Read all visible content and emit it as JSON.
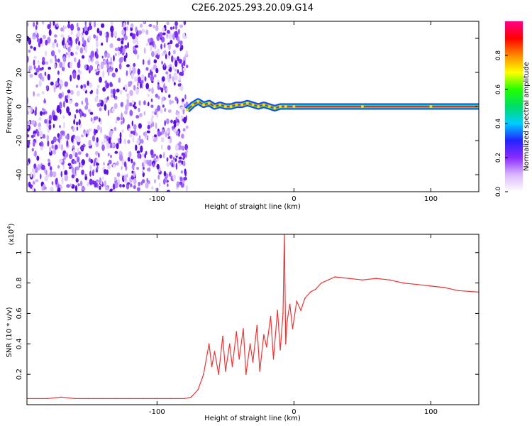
{
  "figure_title": "C2E6.2025.293.20.09.G14",
  "chart_data": [
    {
      "type": "heatmap",
      "title": "C2E6.2025.293.20.09.G14",
      "xlabel": "Height of straight line (km)",
      "ylabel": "Frequency (Hz)",
      "xlim": [
        -195,
        135
      ],
      "ylim": [
        -50,
        50
      ],
      "xticks": [
        -100,
        0,
        100
      ],
      "yticks": [
        -40,
        -20,
        0,
        20,
        40
      ],
      "xtick_labels": [
        "-100",
        "0",
        "100"
      ],
      "ytick_labels": [
        "-40",
        "-20",
        "0",
        "20",
        "40"
      ],
      "noise_region_x": [
        -195,
        -78
      ],
      "signal_track": [
        {
          "x": -78,
          "y": -2
        },
        {
          "x": -74,
          "y": 1
        },
        {
          "x": -70,
          "y": 3
        },
        {
          "x": -66,
          "y": 1
        },
        {
          "x": -62,
          "y": 2
        },
        {
          "x": -58,
          "y": 0
        },
        {
          "x": -54,
          "y": 1
        },
        {
          "x": -50,
          "y": 0
        },
        {
          "x": -46,
          "y": 0
        },
        {
          "x": -42,
          "y": 1
        },
        {
          "x": -38,
          "y": 1
        },
        {
          "x": -34,
          "y": 2
        },
        {
          "x": -30,
          "y": 1
        },
        {
          "x": -26,
          "y": 0
        },
        {
          "x": -22,
          "y": 1
        },
        {
          "x": -18,
          "y": 0
        },
        {
          "x": -14,
          "y": -1
        },
        {
          "x": -10,
          "y": 0
        },
        {
          "x": -6,
          "y": 0
        },
        {
          "x": 0,
          "y": 0
        },
        {
          "x": 50,
          "y": 0
        },
        {
          "x": 100,
          "y": 0
        },
        {
          "x": 135,
          "y": 0
        }
      ],
      "colorbar": {
        "label": "Normalized spectral amplitude",
        "ticks": [
          0.0,
          0.2,
          0.4,
          0.6,
          0.8
        ],
        "tick_labels": [
          "0.0",
          "0.2",
          "0.4",
          "0.6",
          "0.8"
        ],
        "range": [
          0,
          1
        ],
        "colors": [
          "#ffffff",
          "#d9b7ff",
          "#8b2cff",
          "#2222ff",
          "#00ccff",
          "#00dd66",
          "#22ff00",
          "#ffff00",
          "#ff8800",
          "#ff0000",
          "#ff0088"
        ]
      }
    },
    {
      "type": "line",
      "xlabel": "Height of straight line (km)",
      "ylabel": "SNR (10 * v/v)",
      "exponent_label": "(x10",
      "exponent_power": "4",
      "exponent_close": ")",
      "xlim": [
        -195,
        135
      ],
      "ylim": [
        0,
        1.12
      ],
      "xticks": [
        -100,
        0,
        100
      ],
      "yticks": [
        0.2,
        0.4,
        0.6,
        0.8,
        1
      ],
      "xtick_labels": [
        "-100",
        "0",
        "100"
      ],
      "ytick_labels": [
        "0.2",
        "0.4",
        "0.6",
        "0.8",
        "1"
      ],
      "series": [
        {
          "name": "SNR",
          "color": "#ee3333",
          "x": [
            -195,
            -180,
            -170,
            -160,
            -150,
            -140,
            -130,
            -120,
            -110,
            -100,
            -90,
            -80,
            -75,
            -70,
            -66,
            -62,
            -60,
            -58,
            -55,
            -52,
            -50,
            -47,
            -45,
            -42,
            -40,
            -37,
            -35,
            -32,
            -30,
            -27,
            -25,
            -22,
            -20,
            -17,
            -15,
            -12,
            -10,
            -8,
            -7,
            -6,
            -5,
            -3,
            -1,
            2,
            5,
            8,
            12,
            16,
            20,
            25,
            30,
            40,
            50,
            60,
            70,
            80,
            90,
            100,
            110,
            120,
            135
          ],
          "y": [
            0.04,
            0.04,
            0.05,
            0.04,
            0.04,
            0.04,
            0.04,
            0.04,
            0.04,
            0.04,
            0.04,
            0.04,
            0.05,
            0.1,
            0.2,
            0.4,
            0.25,
            0.35,
            0.2,
            0.45,
            0.22,
            0.4,
            0.25,
            0.48,
            0.3,
            0.5,
            0.2,
            0.4,
            0.28,
            0.52,
            0.22,
            0.46,
            0.38,
            0.58,
            0.3,
            0.62,
            0.36,
            0.6,
            1.12,
            0.4,
            0.55,
            0.66,
            0.5,
            0.68,
            0.62,
            0.7,
            0.74,
            0.76,
            0.8,
            0.82,
            0.84,
            0.83,
            0.82,
            0.83,
            0.82,
            0.8,
            0.79,
            0.78,
            0.77,
            0.75,
            0.74
          ]
        }
      ]
    }
  ]
}
